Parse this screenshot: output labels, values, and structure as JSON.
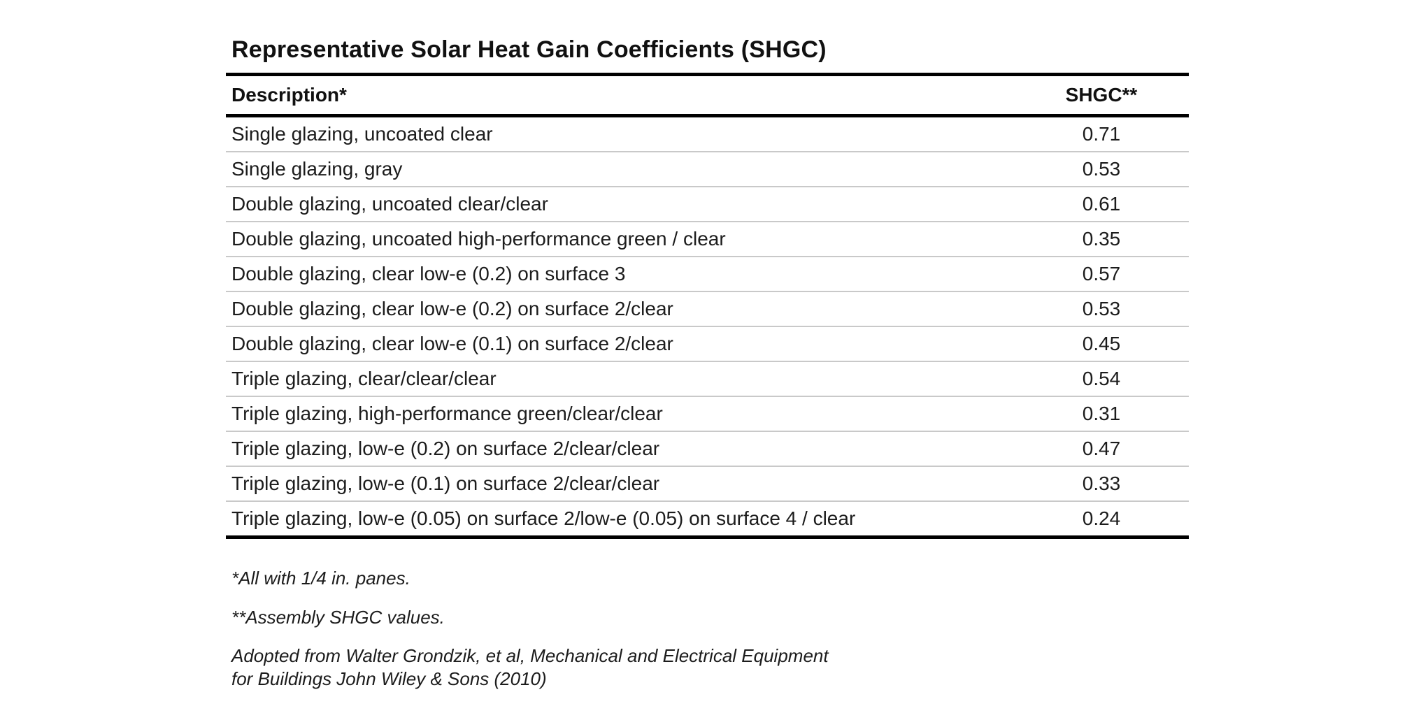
{
  "table": {
    "title": "Representative Solar Heat Gain Coefficients (SHGC)",
    "columns": {
      "description": "Description*",
      "shgc": "SHGC**"
    },
    "rows": [
      {
        "description": "Single glazing, uncoated clear",
        "shgc": "0.71"
      },
      {
        "description": "Single glazing, gray",
        "shgc": "0.53"
      },
      {
        "description": "Double glazing, uncoated clear/clear",
        "shgc": "0.61"
      },
      {
        "description": "Double glazing, uncoated high-performance green / clear",
        "shgc": "0.35"
      },
      {
        "description": "Double glazing, clear low-e (0.2) on surface 3",
        "shgc": "0.57"
      },
      {
        "description": "Double glazing, clear low-e (0.2) on surface 2/clear",
        "shgc": "0.53"
      },
      {
        "description": "Double glazing, clear low-e (0.1) on surface 2/clear",
        "shgc": "0.45"
      },
      {
        "description": "Triple glazing, clear/clear/clear",
        "shgc": "0.54"
      },
      {
        "description": "Triple glazing, high-performance green/clear/clear",
        "shgc": "0.31"
      },
      {
        "description": "Triple glazing, low-e (0.2) on surface 2/clear/clear",
        "shgc": "0.47"
      },
      {
        "description": "Triple glazing, low-e (0.1) on surface 2/clear/clear",
        "shgc": "0.33"
      },
      {
        "description": "Triple glazing, low-e (0.05) on surface 2/low-e (0.05) on surface 4 / clear",
        "shgc": "0.24"
      }
    ],
    "footnotes": {
      "panes": "*All with 1/4 in. panes.",
      "assembly": "**Assembly SHGC values."
    },
    "citation": {
      "line1": "Adopted from Walter Grondzik, et al, Mechanical and Electrical Equipment",
      "line2": "for Buildings John Wiley & Sons (2010)"
    }
  },
  "colors": {
    "background": "#ffffff",
    "text": "#1c1c1c",
    "rule_heavy": "#000000",
    "rule_light": "#c9c9c9"
  }
}
